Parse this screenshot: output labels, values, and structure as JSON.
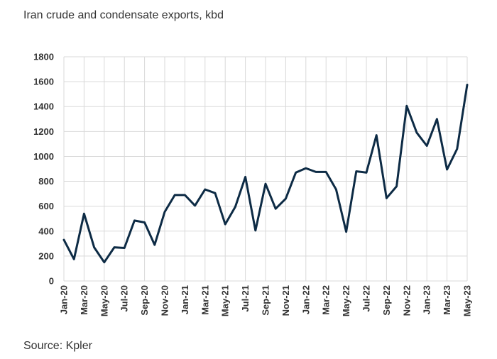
{
  "chart_data": {
    "type": "line",
    "title": "Iran crude and condensate exports, kbd",
    "source": "Source: Kpler",
    "xlabel": "",
    "ylabel": "",
    "ylim": [
      0,
      1800
    ],
    "yticks": [
      0,
      200,
      400,
      600,
      800,
      1000,
      1200,
      1400,
      1600,
      1800
    ],
    "grid": true,
    "line_color": "#0d2b45",
    "x": [
      "Jan-20",
      "Feb-20",
      "Mar-20",
      "Apr-20",
      "May-20",
      "Jun-20",
      "Jul-20",
      "Aug-20",
      "Sep-20",
      "Oct-20",
      "Nov-20",
      "Dec-20",
      "Jan-21",
      "Feb-21",
      "Mar-21",
      "Apr-21",
      "May-21",
      "Jun-21",
      "Jul-21",
      "Aug-21",
      "Sep-21",
      "Oct-21",
      "Nov-21",
      "Dec-21",
      "Jan-22",
      "Feb-22",
      "Mar-22",
      "Apr-22",
      "May-22",
      "Jun-22",
      "Jul-22",
      "Aug-22",
      "Sep-22",
      "Oct-22",
      "Nov-22",
      "Dec-22",
      "Jan-23",
      "Feb-23",
      "Mar-23",
      "Apr-23",
      "May-23"
    ],
    "xtick_labels": [
      "Jan-20",
      "Mar-20",
      "May-20",
      "Jul-20",
      "Sep-20",
      "Nov-20",
      "Jan-21",
      "Mar-21",
      "May-21",
      "Jul-21",
      "Sep-21",
      "Nov-21",
      "Jan-22",
      "Mar-22",
      "May-22",
      "Jul-22",
      "Sep-22",
      "Nov-22",
      "Jan-23",
      "Mar-23",
      "May-23"
    ],
    "series": [
      {
        "values": [
          330,
          175,
          540,
          270,
          150,
          270,
          265,
          485,
          470,
          290,
          555,
          690,
          690,
          605,
          735,
          705,
          455,
          595,
          835,
          405,
          780,
          580,
          660,
          870,
          905,
          875,
          875,
          735,
          395,
          880,
          870,
          1170,
          665,
          760,
          1405,
          1190,
          1085,
          1300,
          895,
          1060,
          1575
        ]
      }
    ]
  }
}
